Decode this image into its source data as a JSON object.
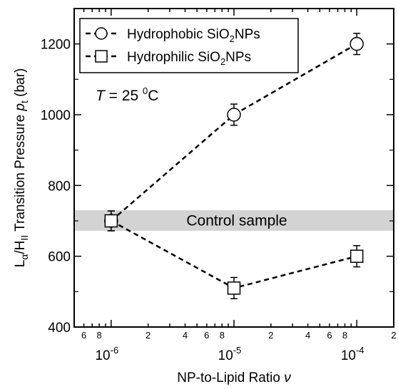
{
  "chart_data": {
    "type": "scatter",
    "xscale": "log",
    "xlim": [
      5e-07,
      0.0002
    ],
    "ylim": [
      400,
      1300
    ],
    "xlabel_main": "NP-to-Lipid Ratio ",
    "xlabel_sym": "ν",
    "ylabel": {
      "l": "L",
      "alpha": "α",
      "slash": "/H",
      "ii": "II",
      "mid": " Transition Pressure ",
      "p": "p",
      "t": "t",
      "unit": " (bar)"
    },
    "y_ticks": [
      {
        "value": 400,
        "label": "400"
      },
      {
        "value": 600,
        "label": "600"
      },
      {
        "value": 800,
        "label": "800"
      },
      {
        "value": 1000,
        "label": "1000"
      },
      {
        "value": 1200,
        "label": "1200"
      }
    ],
    "x_major_ticks": [
      {
        "value": 1e-06,
        "base": "10",
        "exp": "-6"
      },
      {
        "value": 1e-05,
        "base": "10",
        "exp": "-5"
      },
      {
        "value": 0.0001,
        "base": "10",
        "exp": "-4"
      }
    ],
    "x_minor_labeled": [
      {
        "value": 6e-07,
        "label": "6"
      },
      {
        "value": 8e-07,
        "label": "8"
      },
      {
        "value": 2e-06,
        "label": "2"
      },
      {
        "value": 4e-06,
        "label": "4"
      },
      {
        "value": 6e-06,
        "label": "6"
      },
      {
        "value": 8e-06,
        "label": "8"
      },
      {
        "value": 2e-05,
        "label": "2"
      },
      {
        "value": 4e-05,
        "label": "4"
      },
      {
        "value": 6e-05,
        "label": "6"
      },
      {
        "value": 8e-05,
        "label": "8"
      },
      {
        "value": 0.0002,
        "label": "2"
      }
    ],
    "series": [
      {
        "name_pre": "Hydrophobic SiO",
        "name_sub": "2",
        "name_post": "NPs",
        "marker": "circle",
        "x": [
          1e-06,
          1e-05,
          0.0001
        ],
        "y": [
          700,
          1000,
          1200
        ],
        "err": [
          28,
          30,
          30
        ]
      },
      {
        "name_pre": "Hydrophilic SiO",
        "name_sub": "2",
        "name_post": "NPs",
        "marker": "square",
        "x": [
          1e-06,
          1e-05,
          0.0001
        ],
        "y": [
          700,
          510,
          600
        ],
        "err": [
          28,
          30,
          30
        ]
      }
    ],
    "control_band": {
      "label": "Control sample",
      "y_low": 672,
      "y_high": 730,
      "color": "#d3d3d3"
    },
    "annotation": {
      "sym": "T",
      "eq": " = 25 ",
      "sup": "0",
      "unit": "C"
    },
    "legend": "top-left"
  }
}
